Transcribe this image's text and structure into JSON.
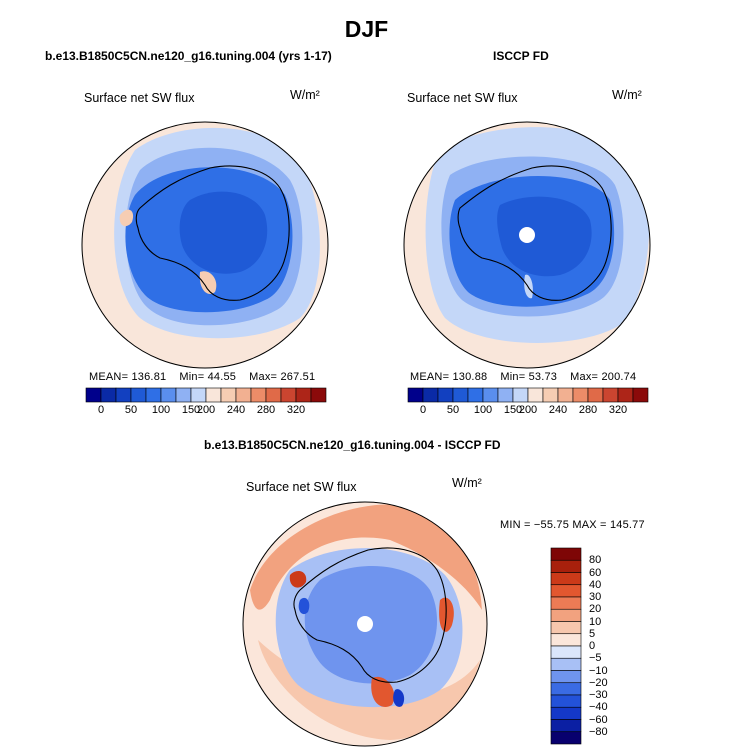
{
  "figure": {
    "title": "DJF",
    "diff_title": "b.e13.B1850C5CN.ne120_g16.tuning.004 - ISCCP FD"
  },
  "colors": {
    "land_outline": "#000000",
    "absolute_scale": [
      "#00008b",
      "#0a2aa6",
      "#1240c0",
      "#1f5ad6",
      "#2f6fe6",
      "#5a8eee",
      "#8fb1f3",
      "#c4d7f8",
      "#f9e6da",
      "#f6cdb3",
      "#f2b091",
      "#ec8c68",
      "#e06a48",
      "#cb4530",
      "#ad2518",
      "#8b0a0a"
    ],
    "diff_scale": [
      "#08006e",
      "#0b1fa3",
      "#1438c8",
      "#2352d9",
      "#3a6be3",
      "#6f94ee",
      "#a8c0f5",
      "#dbe6fb",
      "#fbe6da",
      "#f7c7ad",
      "#f2a27f",
      "#ec7b55",
      "#e2572f",
      "#cc3a19",
      "#a8200c",
      "#7e0606"
    ]
  },
  "chart_data": [
    {
      "type": "heatmap",
      "projection": "south polar stereographic",
      "title": "b.e13.B1850C5CN.ne120_g16.tuning.004 (yrs 1-17)",
      "variable": "Surface net SW flux",
      "units": "W/m²",
      "stats": {
        "mean_label": "MEAN=",
        "mean": "136.81",
        "min_label": "Min=",
        "min": "44.55",
        "max_label": "Max=",
        "max": "267.51"
      },
      "colorbar_ticks": [
        "0",
        "50",
        "100",
        "150",
        "200",
        "240",
        "280",
        "320"
      ]
    },
    {
      "type": "heatmap",
      "projection": "south polar stereographic",
      "title": "ISCCP FD",
      "variable": "Surface net SW flux",
      "units": "W/m²",
      "stats": {
        "mean_label": "MEAN=",
        "mean": "130.88",
        "min_label": "Min=",
        "min": "53.73",
        "max_label": "Max=",
        "max": "200.74"
      },
      "colorbar_ticks": [
        "0",
        "50",
        "100",
        "150",
        "200",
        "240",
        "280",
        "320"
      ]
    },
    {
      "type": "heatmap",
      "projection": "south polar stereographic",
      "title": "b.e13.B1850C5CN.ne120_g16.tuning.004 - ISCCP FD",
      "variable": "Surface net SW flux",
      "units": "W/m²",
      "stats": {
        "min_label": "MIN =",
        "min": "−55.75",
        "max_label": "MAX =",
        "max": "145.77"
      },
      "colorbar_ticks": [
        "80",
        "60",
        "40",
        "30",
        "20",
        "10",
        "5",
        "0",
        "−5",
        "−10",
        "−20",
        "−30",
        "−40",
        "−60",
        "−80"
      ]
    }
  ]
}
